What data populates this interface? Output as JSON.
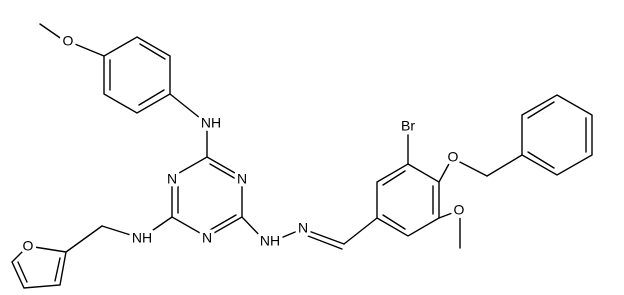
{
  "molecule": {
    "atom_labels": [
      "O",
      "NH",
      "N",
      "N",
      "N",
      "NH",
      "O",
      "NH",
      "N",
      "Br",
      "O",
      "O"
    ]
  }
}
